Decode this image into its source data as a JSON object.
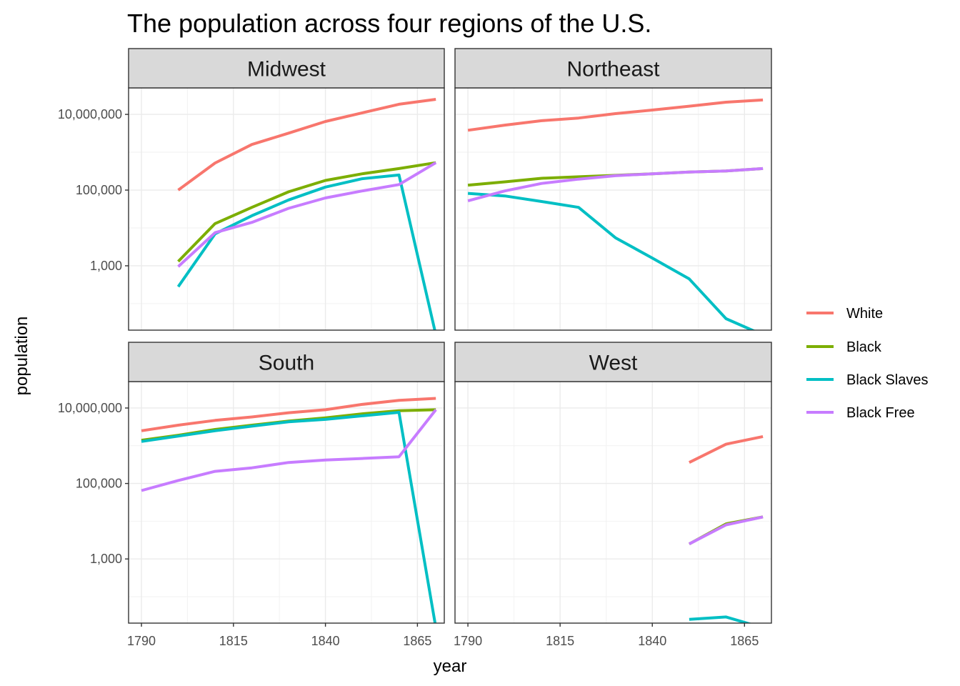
{
  "chart_data": {
    "type": "line",
    "title": "The population across four regions of the U.S.",
    "xlabel": "year",
    "ylabel": "population",
    "y_scale": "log10",
    "grid": true,
    "legend_position": "right",
    "x_ticks": [
      1790,
      1815,
      1840,
      1865
    ],
    "y_ticks": [
      {
        "value": 1000,
        "label": "1,000"
      },
      {
        "value": 100000,
        "label": "100,000"
      },
      {
        "value": 10000000,
        "label": "10,000,000"
      }
    ],
    "series_colors": {
      "White": "#F8766D",
      "Black": "#7CAE00",
      "Black Slaves": "#00BFC4",
      "Black Free": "#C77CFF"
    },
    "legend": [
      "White",
      "Black",
      "Black Slaves",
      "Black Free"
    ],
    "panels": [
      {
        "name": "Midwest",
        "series": [
          {
            "name": "White",
            "x": [
              1800,
              1810,
              1820,
              1830,
              1840,
              1850,
              1860,
              1870
            ],
            "y": [
              100000,
              520000,
              1600000,
              3200000,
              6500000,
              11000000,
              18500000,
              25000000
            ]
          },
          {
            "name": "Black",
            "x": [
              1800,
              1810,
              1820,
              1830,
              1840,
              1850,
              1860,
              1870
            ],
            "y": [
              1300,
              13000,
              35000,
              90000,
              180000,
              270000,
              370000,
              530000
            ]
          },
          {
            "name": "Black Slaves",
            "x": [
              1800,
              1810,
              1820,
              1830,
              1840,
              1850,
              1860,
              1870
            ],
            "y": [
              280,
              7000,
              21000,
              55000,
              120000,
              200000,
              250000,
              15
            ]
          },
          {
            "name": "Black Free",
            "x": [
              1800,
              1810,
              1820,
              1830,
              1840,
              1850,
              1860,
              1870
            ],
            "y": [
              950,
              7500,
              14000,
              33000,
              62000,
              95000,
              140000,
              530000
            ]
          }
        ]
      },
      {
        "name": "Northeast",
        "series": [
          {
            "name": "White",
            "x": [
              1790,
              1800,
              1810,
              1820,
              1830,
              1840,
              1850,
              1860,
              1870
            ],
            "y": [
              3800000,
              5200000,
              6800000,
              8000000,
              10500000,
              13000000,
              16500000,
              21000000,
              24000000
            ]
          },
          {
            "name": "Black",
            "x": [
              1790,
              1800,
              1810,
              1820,
              1830,
              1840,
              1850,
              1860,
              1870
            ],
            "y": [
              135000,
              165000,
              205000,
              225000,
              245000,
              270000,
              300000,
              320000,
              370000
            ]
          },
          {
            "name": "Black Slaves",
            "x": [
              1790,
              1800,
              1810,
              1820,
              1830,
              1840,
              1850,
              1860,
              1870
            ],
            "y": [
              82000,
              70000,
              50000,
              35000,
              5500,
              1600,
              450,
              40,
              15
            ]
          },
          {
            "name": "Black Free",
            "x": [
              1790,
              1800,
              1810,
              1820,
              1830,
              1840,
              1850,
              1860,
              1870
            ],
            "y": [
              52000,
              95000,
              150000,
              195000,
              240000,
              270000,
              300000,
              320000,
              370000
            ]
          }
        ]
      },
      {
        "name": "South",
        "series": [
          {
            "name": "White",
            "x": [
              1790,
              1800,
              1810,
              1820,
              1830,
              1840,
              1850,
              1860,
              1870
            ],
            "y": [
              2500000,
              3500000,
              4700000,
              5800000,
              7500000,
              9000000,
              12500000,
              16000000,
              18000000
            ]
          },
          {
            "name": "Black",
            "x": [
              1790,
              1800,
              1810,
              1820,
              1830,
              1840,
              1850,
              1860,
              1870
            ],
            "y": [
              1400000,
              1900000,
              2700000,
              3500000,
              4500000,
              5500000,
              7000000,
              8500000,
              9000000
            ]
          },
          {
            "name": "Black Slaves",
            "x": [
              1790,
              1800,
              1810,
              1820,
              1830,
              1840,
              1850,
              1860,
              1870
            ],
            "y": [
              1300000,
              1800000,
              2500000,
              3300000,
              4300000,
              5000000,
              6200000,
              7700000,
              15
            ]
          },
          {
            "name": "Black Free",
            "x": [
              1790,
              1800,
              1810,
              1820,
              1830,
              1840,
              1850,
              1860,
              1870
            ],
            "y": [
              65000,
              120000,
              210000,
              260000,
              360000,
              420000,
              460000,
              510000,
              9000000
            ]
          }
        ]
      },
      {
        "name": "West",
        "series": [
          {
            "name": "White",
            "x": [
              1850,
              1860,
              1870
            ],
            "y": [
              360000,
              1100000,
              1750000
            ]
          },
          {
            "name": "Black",
            "x": [
              1850,
              1860,
              1870
            ],
            "y": [
              2500,
              8500,
              13000
            ]
          },
          {
            "name": "Black Slaves",
            "x": [
              1850,
              1860,
              1870
            ],
            "y": [
              25,
              29,
              15
            ]
          },
          {
            "name": "Black Free",
            "x": [
              1850,
              1860,
              1870
            ],
            "y": [
              2500,
              8000,
              13000
            ]
          }
        ]
      }
    ]
  }
}
